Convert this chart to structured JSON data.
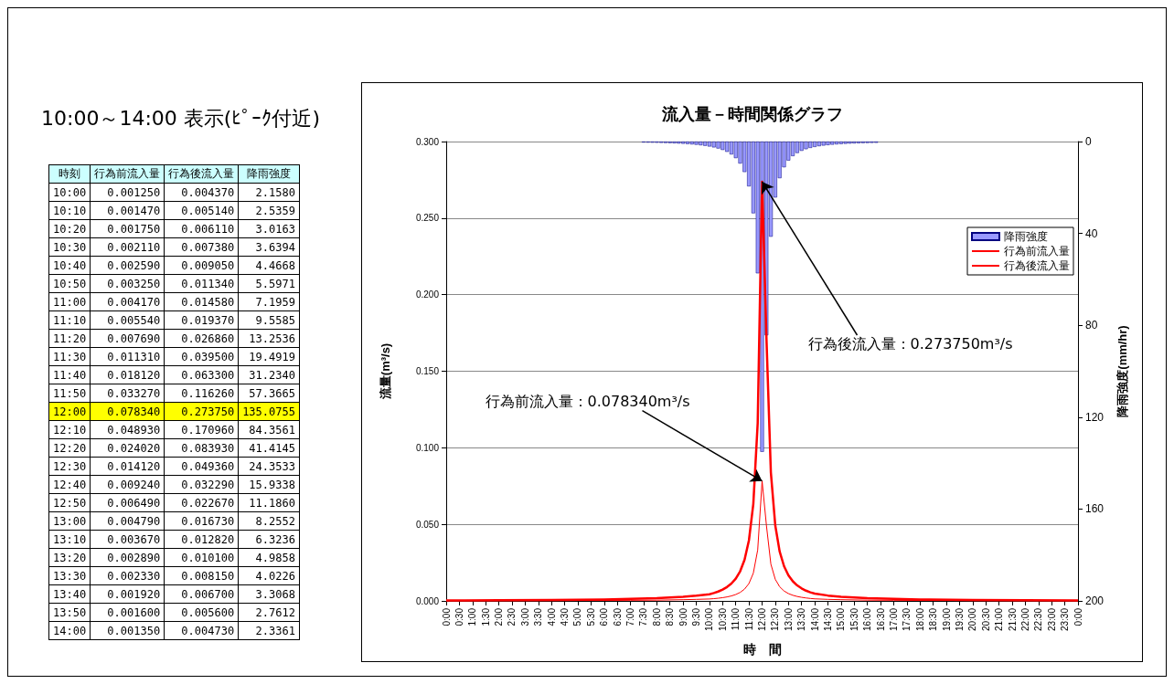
{
  "chart_data": [
    {
      "type": "heatmap",
      "title": "10:00～14:00 表示(ﾋﾟｰｸ付近)",
      "ylabel": "時刻",
      "categories": [
        "行為前流入量",
        "行為後流入量",
        "降雨強度"
      ],
      "y_categories": [
        "10:00",
        "10:10",
        "10:20",
        "10:30",
        "10:40",
        "10:50",
        "11:00",
        "11:10",
        "11:20",
        "11:30",
        "11:40",
        "11:50",
        "12:00",
        "12:10",
        "12:20",
        "12:30",
        "12:40",
        "12:50",
        "13:00",
        "13:10",
        "13:20",
        "13:30",
        "13:40",
        "13:50",
        "14:00"
      ],
      "cells": [
        [
          0.00125,
          0.00437,
          2.158
        ],
        [
          0.00147,
          0.00514,
          2.5359
        ],
        [
          0.00175,
          0.00611,
          3.0163
        ],
        [
          0.00211,
          0.00738,
          3.6394
        ],
        [
          0.00259,
          0.00905,
          4.4668
        ],
        [
          0.00325,
          0.01134,
          5.5971
        ],
        [
          0.00417,
          0.01458,
          7.1959
        ],
        [
          0.00554,
          0.01937,
          9.5585
        ],
        [
          0.00769,
          0.02686,
          13.2536
        ],
        [
          0.01131,
          0.0395,
          19.4919
        ],
        [
          0.01812,
          0.0633,
          31.234
        ],
        [
          0.03327,
          0.11626,
          57.3665
        ],
        [
          0.07834,
          0.27375,
          135.0755
        ],
        [
          0.04893,
          0.17096,
          84.3561
        ],
        [
          0.02402,
          0.08393,
          41.4145
        ],
        [
          0.01412,
          0.04936,
          24.3533
        ],
        [
          0.00924,
          0.03229,
          15.9338
        ],
        [
          0.00649,
          0.02267,
          11.186
        ],
        [
          0.00479,
          0.01673,
          8.2552
        ],
        [
          0.00367,
          0.01282,
          6.3236
        ],
        [
          0.00289,
          0.0101,
          4.9858
        ],
        [
          0.00233,
          0.00815,
          4.0226
        ],
        [
          0.00192,
          0.0067,
          3.3068
        ],
        [
          0.0016,
          0.0056,
          2.7612
        ],
        [
          0.00135,
          0.00473,
          2.3361
        ]
      ],
      "cell_labels": [
        [
          "0.001250",
          "0.004370",
          "2.1580"
        ],
        [
          "0.001470",
          "0.005140",
          "2.5359"
        ],
        [
          "0.001750",
          "0.006110",
          "3.0163"
        ],
        [
          "0.002110",
          "0.007380",
          "3.6394"
        ],
        [
          "0.002590",
          "0.009050",
          "4.4668"
        ],
        [
          "0.003250",
          "0.011340",
          "5.5971"
        ],
        [
          "0.004170",
          "0.014580",
          "7.1959"
        ],
        [
          "0.005540",
          "0.019370",
          "9.5585"
        ],
        [
          "0.007690",
          "0.026860",
          "13.2536"
        ],
        [
          "0.011310",
          "0.039500",
          "19.4919"
        ],
        [
          "0.018120",
          "0.063300",
          "31.2340"
        ],
        [
          "0.033270",
          "0.116260",
          "57.3665"
        ],
        [
          "0.078340",
          "0.273750",
          "135.0755"
        ],
        [
          "0.048930",
          "0.170960",
          "84.3561"
        ],
        [
          "0.024020",
          "0.083930",
          "41.4145"
        ],
        [
          "0.014120",
          "0.049360",
          "24.3533"
        ],
        [
          "0.009240",
          "0.032290",
          "15.9338"
        ],
        [
          "0.006490",
          "0.022670",
          "11.1860"
        ],
        [
          "0.004790",
          "0.016730",
          "8.2552"
        ],
        [
          "0.003670",
          "0.012820",
          "6.3236"
        ],
        [
          "0.002890",
          "0.010100",
          "4.9858"
        ],
        [
          "0.002330",
          "0.008150",
          "4.0226"
        ],
        [
          "0.001920",
          "0.006700",
          "3.3068"
        ],
        [
          "0.001600",
          "0.005600",
          "2.7612"
        ],
        [
          "0.001350",
          "0.004730",
          "2.3361"
        ]
      ]
    },
    {
      "type": "line",
      "title": "流入量－時間関係グラフ",
      "xlabel": "時　間",
      "ylabel": "流量(m³/s)",
      "y2label": "降雨強度(mm/hr)",
      "annotations": [
        {
          "text": "行為後流入量：0.273750m³/s",
          "x": 12,
          "y": 0.27375
        },
        {
          "text": "行為前流入量：0.078340m³/s",
          "x": 12,
          "y": 0.07834
        }
      ],
      "xlim": [
        0,
        24
      ],
      "xticks": [
        {
          "value": 0,
          "label": "0:00"
        },
        {
          "value": 0.5,
          "label": "0:30"
        },
        {
          "value": 1,
          "label": "1:00"
        },
        {
          "value": 1.5,
          "label": "1:30"
        },
        {
          "value": 2,
          "label": "2:00"
        },
        {
          "value": 2.5,
          "label": "2:30"
        },
        {
          "value": 3,
          "label": "3:00"
        },
        {
          "value": 3.5,
          "label": "3:30"
        },
        {
          "value": 4,
          "label": "4:00"
        },
        {
          "value": 4.5,
          "label": "4:30"
        },
        {
          "value": 5,
          "label": "5:00"
        },
        {
          "value": 5.5,
          "label": "5:30"
        },
        {
          "value": 6,
          "label": "6:00"
        },
        {
          "value": 6.5,
          "label": "6:30"
        },
        {
          "value": 7,
          "label": "7:00"
        },
        {
          "value": 7.5,
          "label": "7:30"
        },
        {
          "value": 8,
          "label": "8:00"
        },
        {
          "value": 8.5,
          "label": "8:30"
        },
        {
          "value": 9,
          "label": "9:00"
        },
        {
          "value": 9.5,
          "label": "9:30"
        },
        {
          "value": 10,
          "label": "10:00"
        },
        {
          "value": 10.5,
          "label": "10:30"
        },
        {
          "value": 11,
          "label": "11:00"
        },
        {
          "value": 11.5,
          "label": "11:30"
        },
        {
          "value": 12,
          "label": "12:00"
        },
        {
          "value": 12.5,
          "label": "12:30"
        },
        {
          "value": 13,
          "label": "13:00"
        },
        {
          "value": 13.5,
          "label": "13:30"
        },
        {
          "value": 14,
          "label": "14:00"
        },
        {
          "value": 14.5,
          "label": "14:30"
        },
        {
          "value": 15,
          "label": "15:00"
        },
        {
          "value": 15.5,
          "label": "15:30"
        },
        {
          "value": 16,
          "label": "16:00"
        },
        {
          "value": 16.5,
          "label": "16:30"
        },
        {
          "value": 17,
          "label": "17:00"
        },
        {
          "value": 17.5,
          "label": "17:30"
        },
        {
          "value": 18,
          "label": "18:00"
        },
        {
          "value": 18.5,
          "label": "18:30"
        },
        {
          "value": 19,
          "label": "19:00"
        },
        {
          "value": 19.5,
          "label": "19:30"
        },
        {
          "value": 20,
          "label": "20:00"
        },
        {
          "value": 20.5,
          "label": "20:30"
        },
        {
          "value": 21,
          "label": "21:00"
        },
        {
          "value": 21.5,
          "label": "21:30"
        },
        {
          "value": 22,
          "label": "22:00"
        },
        {
          "value": 22.5,
          "label": "22:30"
        },
        {
          "value": 23,
          "label": "23:00"
        },
        {
          "value": 23.5,
          "label": "23:30"
        },
        {
          "value": 24,
          "label": "0:00"
        }
      ],
      "ylim": [
        0,
        0.3
      ],
      "yticks": [
        {
          "value": 0,
          "label": "0.000"
        },
        {
          "value": 0.05,
          "label": "0.050"
        },
        {
          "value": 0.1,
          "label": "0.100"
        },
        {
          "value": 0.15,
          "label": "0.150"
        },
        {
          "value": 0.2,
          "label": "0.200"
        },
        {
          "value": 0.25,
          "label": "0.250"
        },
        {
          "value": 0.3,
          "label": "0.300"
        }
      ],
      "y2lim": [
        200,
        0
      ],
      "y2ticks": [
        0,
        40,
        80,
        120,
        160,
        200
      ],
      "grid": "y",
      "legend": "right",
      "marker": "none",
      "line_style": "solid",
      "series": [
        {
          "name": "行為前流入量",
          "type": "line",
          "color": "#ff0000",
          "x": [
            0,
            2,
            4,
            6,
            7,
            8,
            9,
            9.5,
            10,
            10.1667,
            10.3333,
            10.5,
            10.6667,
            10.8333,
            11,
            11.1667,
            11.3333,
            11.5,
            11.6667,
            11.8333,
            12,
            12.1667,
            12.3333,
            12.5,
            12.6667,
            12.8333,
            13,
            13.1667,
            13.3333,
            13.5,
            13.6667,
            13.8333,
            14,
            14.5,
            15,
            16,
            17,
            18,
            20,
            22,
            24
          ],
          "values": [
            0.0001,
            0.0001,
            0.0002,
            0.0003,
            0.0004,
            0.0005,
            0.0008,
            0.001,
            0.00125,
            0.00147,
            0.00175,
            0.00211,
            0.00259,
            0.00325,
            0.00417,
            0.00554,
            0.00769,
            0.01131,
            0.01812,
            0.03327,
            0.07834,
            0.04893,
            0.02402,
            0.01412,
            0.00924,
            0.00649,
            0.00479,
            0.00367,
            0.00289,
            0.00233,
            0.00192,
            0.0016,
            0.00135,
            0.001,
            0.0008,
            0.0005,
            0.0004,
            0.0003,
            0.0002,
            0.0001,
            0.0001
          ]
        },
        {
          "name": "行為後流入量",
          "type": "line",
          "color": "#ff0000",
          "x": [
            0,
            2,
            4,
            6,
            7,
            8,
            9,
            9.5,
            10,
            10.1667,
            10.3333,
            10.5,
            10.6667,
            10.8333,
            11,
            11.1667,
            11.3333,
            11.5,
            11.6667,
            11.8333,
            12,
            12.1667,
            12.3333,
            12.5,
            12.6667,
            12.8333,
            13,
            13.1667,
            13.3333,
            13.5,
            13.6667,
            13.8333,
            14,
            14.5,
            15,
            16,
            17,
            18,
            20,
            22,
            24
          ],
          "values": [
            0.0003,
            0.0004,
            0.0006,
            0.0009,
            0.0013,
            0.0018,
            0.0027,
            0.0034,
            0.00437,
            0.00514,
            0.00611,
            0.00738,
            0.00905,
            0.01134,
            0.01458,
            0.01937,
            0.02686,
            0.0395,
            0.0633,
            0.11626,
            0.27375,
            0.17096,
            0.08393,
            0.04936,
            0.03229,
            0.02267,
            0.01673,
            0.01282,
            0.0101,
            0.00815,
            0.0067,
            0.0056,
            0.00473,
            0.0035,
            0.0027,
            0.0018,
            0.0013,
            0.0009,
            0.0006,
            0.0004,
            0.0003
          ]
        },
        {
          "name": "降雨強度",
          "type": "bar",
          "axis": "y2",
          "color": "#9999ff",
          "x": [
            7.5,
            7.6667,
            7.8333,
            8,
            8.1667,
            8.3333,
            8.5,
            8.6667,
            8.8333,
            9,
            9.1667,
            9.3333,
            9.5,
            9.6667,
            9.8333,
            10,
            10.1667,
            10.3333,
            10.5,
            10.6667,
            10.8333,
            11,
            11.1667,
            11.3333,
            11.5,
            11.6667,
            11.8333,
            12,
            12.1667,
            12.3333,
            12.5,
            12.6667,
            12.8333,
            13,
            13.1667,
            13.3333,
            13.5,
            13.6667,
            13.8333,
            14,
            14.1667,
            14.3333,
            14.5,
            14.6667,
            14.8333,
            15,
            15.1667,
            15.3333,
            15.5,
            15.6667,
            15.8333,
            16,
            16.1667,
            16.3333
          ],
          "values": [
            0.4,
            0.43,
            0.47,
            0.51,
            0.56,
            0.62,
            0.68,
            0.76,
            0.85,
            0.95,
            1.07,
            1.22,
            1.39,
            1.6,
            1.85,
            2.158,
            2.5359,
            3.0163,
            3.6394,
            4.4668,
            5.5971,
            7.1959,
            9.5585,
            13.2536,
            19.4919,
            31.234,
            57.3665,
            135.0755,
            84.3561,
            41.4145,
            24.3533,
            15.9338,
            11.186,
            8.2552,
            6.3236,
            4.9858,
            4.0226,
            3.3068,
            2.7612,
            2.3361,
            2.0,
            1.74,
            1.53,
            1.35,
            1.2,
            1.08,
            0.97,
            0.88,
            0.8,
            0.73,
            0.67,
            0.62,
            0.57,
            0.53
          ]
        }
      ]
    }
  ]
}
